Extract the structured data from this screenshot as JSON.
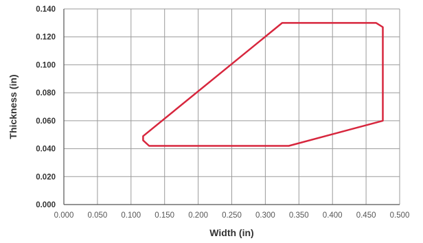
{
  "chart_data": {
    "type": "line",
    "title": "",
    "xlabel": "Width (in)",
    "ylabel": "Thickness (in)",
    "xlim": [
      0,
      0.5
    ],
    "ylim": [
      0,
      0.14
    ],
    "x_ticks": [
      "0.000",
      "0.050",
      "0.100",
      "0.150",
      "0.200",
      "0.250",
      "0.300",
      "0.350",
      "0.400",
      "0.450",
      "0.500"
    ],
    "y_ticks": [
      "0.000",
      "0.020",
      "0.040",
      "0.060",
      "0.080",
      "0.100",
      "0.120",
      "0.140"
    ],
    "grid": true,
    "legend": "none",
    "series": [
      {
        "color": "#d7263d",
        "closed": true,
        "x": [
          0.118,
          0.325,
          0.465,
          0.475,
          0.475,
          0.335,
          0.127,
          0.118
        ],
        "y": [
          0.049,
          0.13,
          0.13,
          0.127,
          0.06,
          0.042,
          0.042,
          0.046
        ]
      }
    ]
  }
}
